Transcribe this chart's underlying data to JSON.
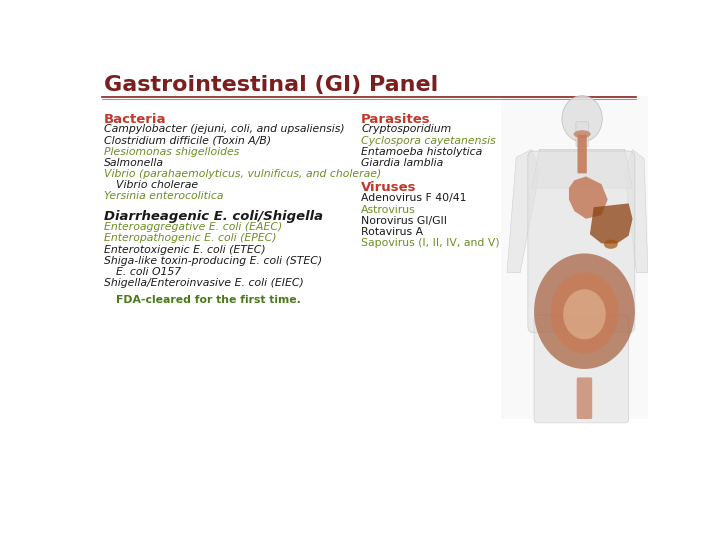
{
  "title": "Gastrointestinal (GI) Panel",
  "title_color": "#7B1E1E",
  "title_fontsize": 16,
  "bg_color": "#FFFFFF",
  "divider_color": "#8B2020",
  "section_header_color": "#C0392B",
  "black_italic_color": "#1A1A1A",
  "green_color": "#6B8E23",
  "fda_green": "#4A7A1A",
  "bacteria_header": "Bacteria",
  "bacteria_lines": [
    {
      "text": "Campylobacter (jejuni, coli, and upsaliensis)",
      "style": "black_italic",
      "indent": 0
    },
    {
      "text": "Clostridium difficile (Toxin A/B)",
      "style": "black_italic",
      "indent": 0
    },
    {
      "text": "Plesiomonas shigelloides",
      "style": "green_italic",
      "indent": 0
    },
    {
      "text": "Salmonella",
      "style": "black_italic",
      "indent": 0
    },
    {
      "text": "Vibrio (parahaemolyticus, vulnificus, and cholerae)",
      "style": "green_italic",
      "indent": 0
    },
    {
      "text": "Vibrio cholerae",
      "style": "black_italic",
      "indent": 1
    },
    {
      "text": "Yersinia enterocolitica",
      "style": "green_italic",
      "indent": 0
    }
  ],
  "ecoli_header": "Diarrheagenic E. coli/Shigella",
  "ecoli_lines": [
    {
      "text": "Enteroaggregative E. coli (EAEC)",
      "style": "green_italic",
      "indent": 0
    },
    {
      "text": "Enteropathogenic E. coli (EPEC)",
      "style": "green_italic",
      "indent": 0
    },
    {
      "text": "Enterotoxigenic E. coli (ETEC)",
      "style": "black_italic",
      "indent": 0
    },
    {
      "text": "Shiga-like toxin-producing E. coli (STEC)",
      "style": "black_italic",
      "indent": 0
    },
    {
      "text": "E. coli O157",
      "style": "black_italic",
      "indent": 1
    },
    {
      "text": "Shigella/Enteroinvasive E. coli (EIEC)",
      "style": "black_italic",
      "indent": 0
    }
  ],
  "fda_text": "FDA-cleared for the first time.",
  "parasites_header": "Parasites",
  "parasites_lines": [
    {
      "text": "Cryptosporidium",
      "style": "black_italic"
    },
    {
      "text": "Cyclospora cayetanensis",
      "style": "green_italic"
    },
    {
      "text": "Entamoeba histolytica",
      "style": "black_italic"
    },
    {
      "text": "Giardia lamblia",
      "style": "black_italic"
    }
  ],
  "viruses_header": "Viruses",
  "viruses_lines": [
    {
      "text": "Adenovirus F 40/41",
      "style": "black_normal"
    },
    {
      "text": "Astrovirus",
      "style": "green_normal"
    },
    {
      "text": "Norovirus GI/GII",
      "style": "black_normal"
    },
    {
      "text": "Rotavirus A",
      "style": "black_normal"
    },
    {
      "text": "Sapovirus (I, II, IV, and V)",
      "style": "green_normal"
    }
  ]
}
